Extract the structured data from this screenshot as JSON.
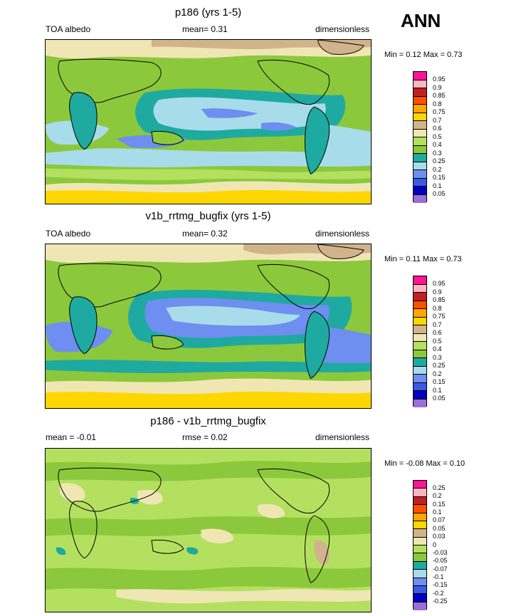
{
  "season": "ANN",
  "colors": {
    "abs_scale": [
      "#9b6fd6",
      "#0000c0",
      "#3a5ae0",
      "#6e8ef0",
      "#a8dcea",
      "#1eaaa0",
      "#8cc83c",
      "#b4e060",
      "#f0e6b4",
      "#d2b48c",
      "#ffd700",
      "#ffa500",
      "#ff5000",
      "#c02020",
      "#ffb4c0",
      "#ff1493"
    ],
    "diff_scale": [
      "#9b6fd6",
      "#0000c0",
      "#3a5ae0",
      "#6e8ef0",
      "#a8dcea",
      "#1eaaa0",
      "#8cc83c",
      "#b4e060",
      "#f0e6b4",
      "#d2b48c",
      "#ffd700",
      "#ffa500",
      "#ff5000",
      "#c02020",
      "#ffb4c0",
      "#ff1493"
    ]
  },
  "panels": [
    {
      "title": "p186 (yrs 1-5)",
      "left_label": "TOA albedo",
      "center_label": "mean=   0.31",
      "right_label": "dimensionless",
      "minmax": "Min =   0.12 Max =   0.73",
      "colorbar_labels": [
        "0.95",
        "0.9",
        "0.85",
        "0.8",
        "0.75",
        "0.7",
        "0.6",
        "0.5",
        "0.4",
        "0.3",
        "0.25",
        "0.2",
        "0.15",
        "0.1",
        "0.05"
      ],
      "scale": "abs_scale"
    },
    {
      "title": "v1b_rrtmg_bugfix (yrs 1-5)",
      "left_label": "TOA albedo",
      "center_label": "mean=   0.32",
      "right_label": "dimensionless",
      "minmax": "Min =   0.11 Max =   0.73",
      "colorbar_labels": [
        "0.95",
        "0.9",
        "0.85",
        "0.8",
        "0.75",
        "0.7",
        "0.6",
        "0.5",
        "0.4",
        "0.3",
        "0.25",
        "0.2",
        "0.15",
        "0.1",
        "0.05"
      ],
      "scale": "abs_scale"
    },
    {
      "title": "p186 - v1b_rrtmg_bugfix",
      "left_label": "mean =   -0.01",
      "center_label": "rmse =   0.02",
      "right_label": "dimensionless",
      "minmax": "Min =  -0.08 Max =   0.10",
      "colorbar_labels": [
        "0.25",
        "0.2",
        "0.15",
        "0.1",
        "0.07",
        "0.05",
        "0.03",
        "0",
        "-0.03",
        "-0.05",
        "-0.07",
        "-0.1",
        "-0.15",
        "-0.2",
        "-0.25"
      ],
      "scale": "diff_scale"
    }
  ]
}
